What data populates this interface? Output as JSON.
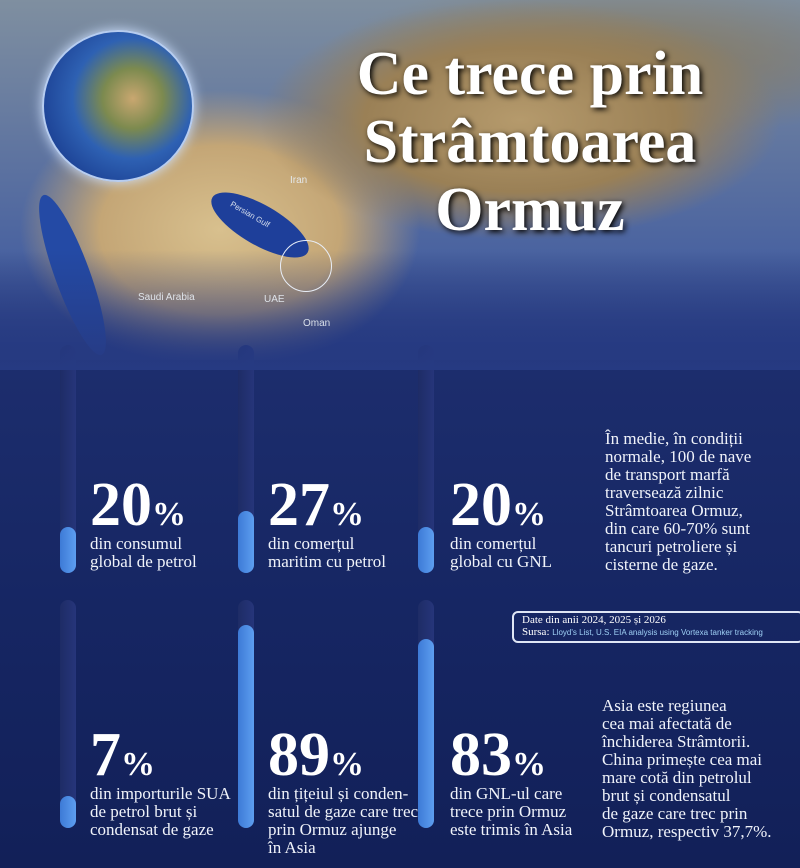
{
  "title": [
    "Ce trece prin",
    "Strâmtoarea",
    "Ormuz"
  ],
  "map_labels": {
    "iran": "Iran",
    "gulf": "Persian Gulf",
    "saudi": "Saudi Arabia",
    "uae": "UAE",
    "oman": "Oman"
  },
  "stats": [
    {
      "value": "20",
      "unit": "%",
      "fill_percent": 20,
      "desc": [
        "din consumul",
        "global de petrol"
      ]
    },
    {
      "value": "27",
      "unit": "%",
      "fill_percent": 27,
      "desc": [
        "din comerțul",
        "maritim cu petrol"
      ]
    },
    {
      "value": "20",
      "unit": "%",
      "fill_percent": 20,
      "desc": [
        "din comerțul",
        "global cu GNL"
      ]
    },
    {
      "value": "7",
      "unit": "%",
      "fill_percent": 7,
      "desc": [
        "din importurile SUA",
        "de petrol brut și",
        "condensat de gaze"
      ]
    },
    {
      "value": "89",
      "unit": "%",
      "fill_percent": 89,
      "desc": [
        "din țițeiul și conden-",
        "satul de gaze care trec",
        "prin Ormuz ajunge",
        "în Asia"
      ]
    },
    {
      "value": "83",
      "unit": "%",
      "fill_percent": 83,
      "desc": [
        "din GNL-ul care",
        "trece prin Ormuz",
        "este trimis în Asia"
      ]
    }
  ],
  "note1": [
    "În medie, în condiții",
    "normale, 100 de nave",
    "de transport marfă",
    "traversează zilnic",
    "Strâmtoarea Ormuz,",
    "din care 60-70% sunt",
    "tancuri petroliere și",
    "cisterne de gaze."
  ],
  "note2": [
    "Asia este regiunea",
    "cea mai afectată de",
    "închiderea Strâmtorii.",
    "China primește cea mai",
    "mare cotă din petrolul",
    "brut și condensatul",
    "de gaze care trec prin",
    "Ormuz, respectiv 37,7%."
  ],
  "source": {
    "years": "Date din anii 2024, 2025 și 2026",
    "label": "Sursa:",
    "text": "Lloyd's List, U.S. EIA analysis using Vortexa tanker tracking"
  },
  "colors": {
    "background": "#1d2e6e",
    "bar_fill": "#4a8ae4"
  }
}
